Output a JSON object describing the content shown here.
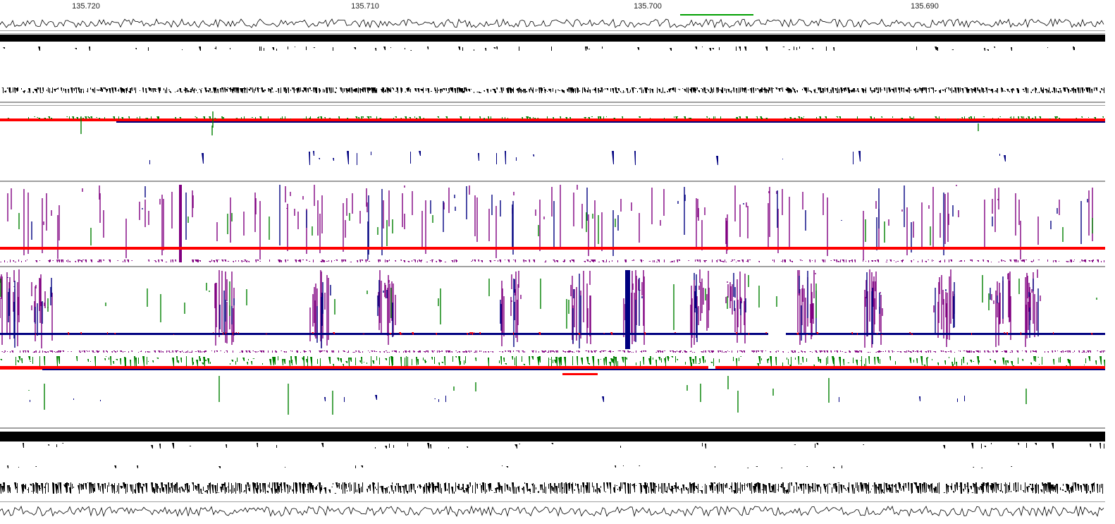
{
  "viewer": {
    "title": "",
    "ruler": {
      "labels": [
        "135.720",
        "135.710",
        "135.700",
        "135.690"
      ]
    },
    "colors": {
      "background": "#ffffff",
      "track_black": "#000000",
      "separator": "#a0a0a0",
      "fwd_match": "#ff0000",
      "rev_match": "#000080",
      "mismatch": "#008000",
      "purple_hit": "#800080",
      "highlight_bar": "#00a000"
    },
    "tracks": [
      {
        "name": "signal-trace-top"
      },
      {
        "name": "sequence-density-top"
      },
      {
        "name": "feature-scatter-top"
      },
      {
        "name": "sequence-density-upper"
      },
      {
        "name": "alignment-track-1"
      },
      {
        "name": "alignment-track-2"
      },
      {
        "name": "alignment-track-3"
      },
      {
        "name": "alignment-track-4"
      },
      {
        "name": "sequence-density-bottom"
      },
      {
        "name": "signal-trace-bottom"
      }
    ]
  }
}
